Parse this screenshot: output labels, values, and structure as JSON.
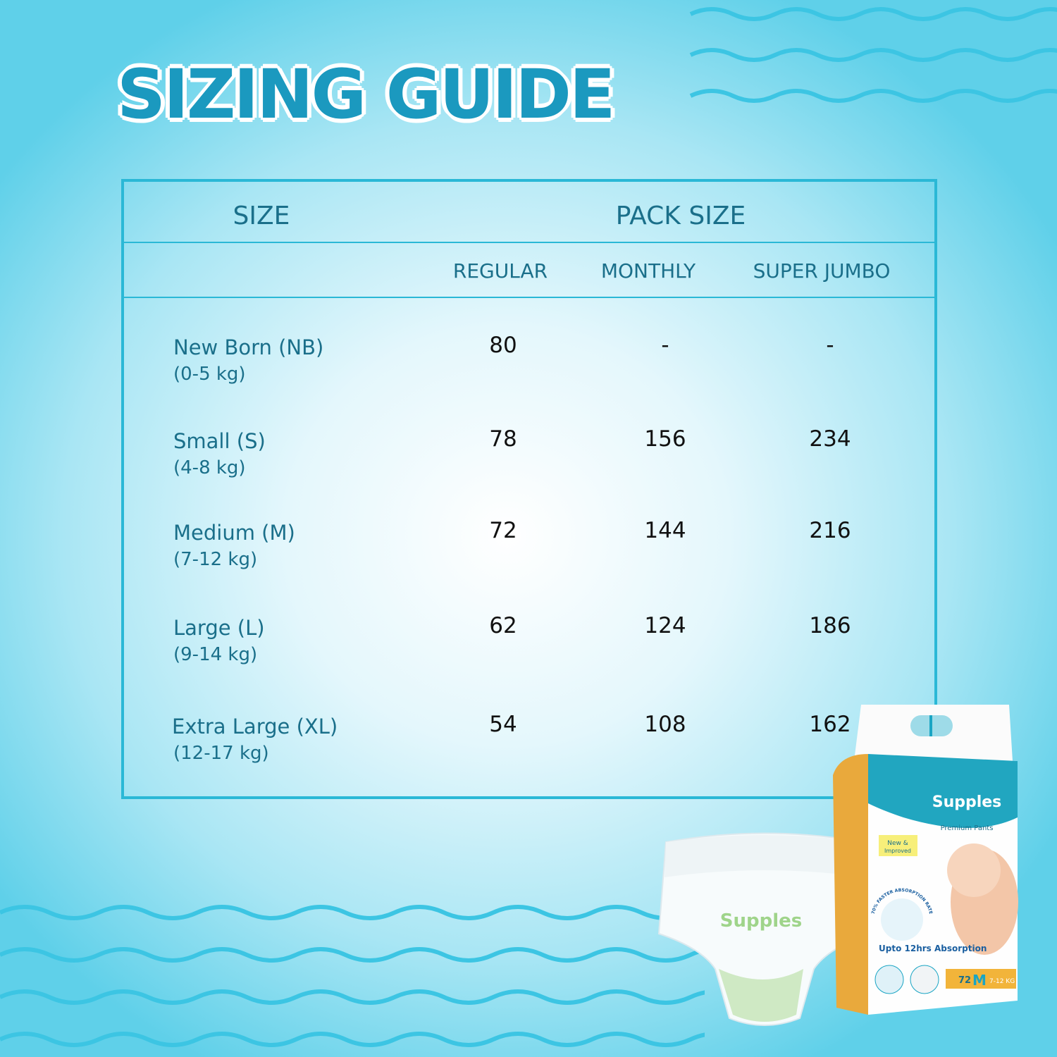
{
  "title": "SIZING GUIDE",
  "colors": {
    "title": "#1b99bf",
    "text": "#1a6f8a",
    "border": "#2ab8d6",
    "background_edge": "#5fd0e9"
  },
  "table": {
    "header_size": "SIZE",
    "header_pack": "PACK SIZE",
    "columns": [
      "REGULAR",
      "MONTHLY",
      "SUPER JUMBO"
    ],
    "rows": [
      {
        "name": "New Born (NB)",
        "range": "(0-5 kg)",
        "values": [
          "80",
          "-",
          "-"
        ]
      },
      {
        "name": "Small (S)",
        "range": "(4-8 kg)",
        "values": [
          "78",
          "156",
          "234"
        ]
      },
      {
        "name": "Medium (M)",
        "range": "(7-12 kg)",
        "values": [
          "72",
          "144",
          "216"
        ]
      },
      {
        "name": "Large (L)",
        "range": "(9-14 kg)",
        "values": [
          "62",
          "124",
          "186"
        ]
      },
      {
        "name": "Extra Large (XL)",
        "range": "(12-17 kg)",
        "values": [
          "54",
          "108",
          "162"
        ]
      }
    ]
  },
  "product": {
    "brand": "Supples",
    "line": "Premium Pants",
    "badge": "New & Improved",
    "claim": "70% FASTER ABSORPTION RATE",
    "absorption": "Upto 12hrs Absorption",
    "count": "72",
    "size": "M",
    "weight": "7-12 KG"
  }
}
